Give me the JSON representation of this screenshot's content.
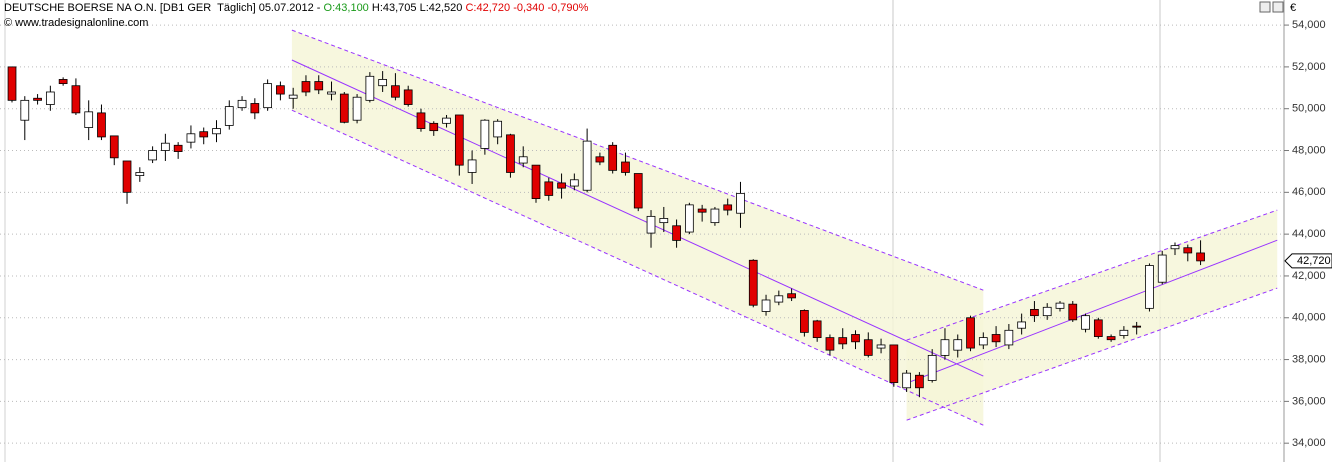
{
  "chart_data": {
    "type": "candlestick",
    "title": "DEUTSCHE BOERSE NA O.N. [DB1 GER  Täglich] 05.07.2012 -",
    "quote": {
      "open": "O:43,100",
      "high": "H:43,705",
      "low": "L:42,520",
      "close": "C:42,720",
      "change": "-0,340",
      "change_pct": "-0,790%"
    },
    "source": "© www.tradesignalonline.com",
    "currency": "€",
    "up_color": "#ffffff",
    "down_color": "#e00000",
    "open": [
      52000,
      49450,
      50500,
      50200,
      51400,
      51100,
      49100,
      49800,
      48700,
      47500,
      46800,
      47550,
      48000,
      48250,
      48400,
      48900,
      48800,
      49200,
      50050,
      50250,
      50050,
      51100,
      50500,
      51300,
      51300,
      50700,
      50700,
      49450,
      50400,
      51100,
      51100,
      50900,
      49800,
      49300,
      49300,
      49700,
      46950,
      48100,
      48650,
      48750,
      47400,
      47300,
      46500,
      46450,
      46300,
      46100,
      47700,
      48250,
      47450,
      46900,
      44050,
      44550,
      44400,
      44100,
      45200,
      44550,
      45400,
      45000,
      42750,
      40300,
      40750,
      41150,
      40350,
      39850,
      39050,
      39050,
      39200,
      38950,
      38550,
      38700,
      36650,
      37250,
      37000,
      38200,
      38450,
      40000,
      38700,
      39200,
      38700,
      39500,
      40400,
      40100,
      40450,
      40650,
      39450,
      39900,
      39100,
      39150,
      39600,
      40450,
      41700,
      43300,
      43350,
      43100
    ],
    "high": [
      52000,
      50600,
      50700,
      51100,
      51500,
      51450,
      50400,
      50200,
      48700,
      47500,
      47200,
      48200,
      48800,
      48400,
      49200,
      49100,
      49450,
      50400,
      50600,
      50500,
      51400,
      51300,
      51000,
      51600,
      51600,
      51300,
      50800,
      50700,
      51750,
      51800,
      51700,
      51100,
      50000,
      49400,
      49700,
      49700,
      48000,
      49500,
      49500,
      48800,
      48200,
      47300,
      46700,
      46900,
      46900,
      49050,
      47900,
      48400,
      47900,
      46900,
      45150,
      45300,
      44700,
      45500,
      45400,
      45300,
      45700,
      46500,
      42800,
      41100,
      41300,
      41400,
      40400,
      39900,
      39200,
      39500,
      39400,
      39300,
      39000,
      38700,
      37500,
      37400,
      38500,
      39500,
      39200,
      40100,
      39300,
      39600,
      39700,
      40200,
      40800,
      40700,
      40800,
      40800,
      40200,
      40000,
      39200,
      39600,
      39800,
      42600,
      43200,
      43600,
      43500,
      43705
    ],
    "low": [
      50300,
      48500,
      50200,
      49900,
      51100,
      49700,
      48500,
      48500,
      47300,
      45450,
      46500,
      47400,
      47500,
      47600,
      48100,
      48300,
      48400,
      49000,
      49900,
      49500,
      49900,
      50400,
      50000,
      50600,
      50700,
      50400,
      49300,
      49300,
      50300,
      50800,
      50400,
      50100,
      48900,
      48700,
      49100,
      46800,
      46400,
      47800,
      48300,
      46700,
      47200,
      45500,
      45600,
      45700,
      46100,
      46000,
      47300,
      46900,
      46800,
      45100,
      43350,
      44100,
      43350,
      44000,
      44600,
      44400,
      44900,
      44300,
      40500,
      40100,
      40600,
      40800,
      39100,
      38850,
      38200,
      38500,
      38500,
      38100,
      38300,
      36700,
      36450,
      36200,
      36900,
      38000,
      38100,
      38400,
      38500,
      38600,
      38500,
      39200,
      39800,
      39900,
      40300,
      39800,
      39300,
      39000,
      38850,
      39000,
      39200,
      40300,
      41600,
      43000,
      42700,
      42520
    ],
    "close": [
      50400,
      50400,
      50400,
      50800,
      51200,
      49800,
      49850,
      48650,
      47650,
      46000,
      46950,
      48000,
      48350,
      47950,
      48800,
      48650,
      49050,
      50100,
      50400,
      49800,
      51200,
      50700,
      50650,
      50800,
      50900,
      50800,
      49350,
      50550,
      51550,
      51400,
      50550,
      50200,
      49050,
      48950,
      49550,
      47300,
      47550,
      49450,
      49400,
      46950,
      47700,
      45700,
      45850,
      46200,
      46600,
      48450,
      47450,
      47050,
      46950,
      45250,
      44850,
      44750,
      43700,
      45400,
      45050,
      45200,
      45150,
      45950,
      40600,
      40850,
      41050,
      40950,
      39300,
      39050,
      38450,
      38750,
      38850,
      38200,
      38700,
      36900,
      37350,
      36650,
      38200,
      38950,
      38950,
      38550,
      39050,
      38850,
      39400,
      39800,
      40100,
      40500,
      40700,
      39900,
      40100,
      39100,
      38950,
      39400,
      39550,
      42500,
      43000,
      43450,
      43100,
      42720
    ],
    "xlim": [
      -0.94,
      99.45
    ],
    "ylim": [
      33100,
      55200
    ],
    "yticks": [
      {
        "value": 34000,
        "label": "34,000"
      },
      {
        "value": 36000,
        "label": "36,000"
      },
      {
        "value": 38000,
        "label": "38,000"
      },
      {
        "value": 40000,
        "label": "40,000"
      },
      {
        "value": 42000,
        "label": "42,000"
      },
      {
        "value": 44000,
        "label": "44,000"
      },
      {
        "value": 46000,
        "label": "46,000"
      },
      {
        "value": 48000,
        "label": "48,000"
      },
      {
        "value": 50000,
        "label": "50,000"
      },
      {
        "value": 52000,
        "label": "52,000"
      },
      {
        "value": 54000,
        "label": "54,000"
      }
    ],
    "grid": true,
    "last_price": {
      "value": 42720,
      "label": "42,720"
    },
    "channel_color": "#9933ff",
    "channel_fill": "#f6f6d8",
    "channels": [
      {
        "x": [
          21.9,
          76
        ],
        "upper": [
          53760,
          41320
        ],
        "middle": [
          52330,
          37210
        ],
        "lower": [
          49930,
          34860
        ]
      },
      {
        "x": [
          70,
          99
        ],
        "upper": [
          38930,
          45150
        ],
        "middle": [
          36870,
          43710
        ],
        "lower": [
          35100,
          41420
        ]
      }
    ]
  }
}
